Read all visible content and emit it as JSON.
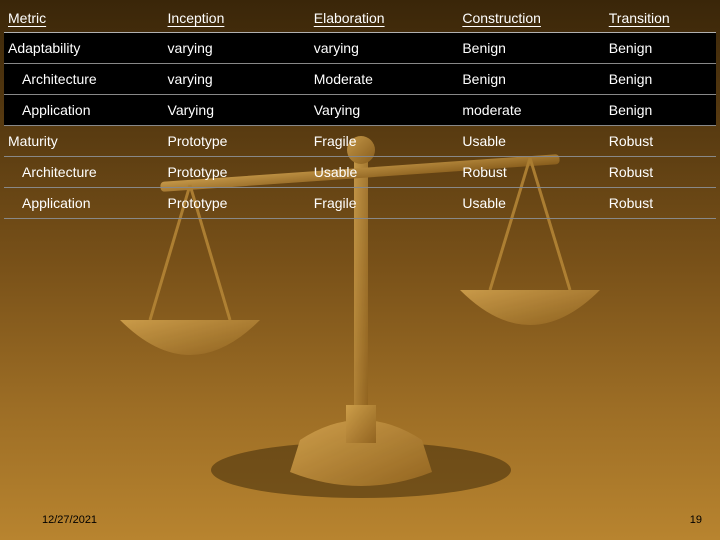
{
  "slide": {
    "background_gradient": [
      "#3a2609",
      "#5a3c11",
      "#7a5219",
      "#9c6d25",
      "#b8842f"
    ],
    "scales_color": "#c89340",
    "scales_shadow": "#3e2a0b"
  },
  "table": {
    "type": "table",
    "text_color": "#ffffff",
    "header_underline": true,
    "row_border_color": "#888888",
    "dark_row_bg": "#000000",
    "font_size": 14,
    "columns": [
      {
        "label": "Metric",
        "width": 145
      },
      {
        "label": "Inception",
        "width": 150
      },
      {
        "label": "Elaboration",
        "width": 150
      },
      {
        "label": "Construction",
        "width": 145
      },
      {
        "label": "Transition",
        "width": 110
      }
    ],
    "rows": [
      {
        "metric": "Adaptability",
        "indent": 0,
        "dark": true,
        "cells": [
          "varying",
          "varying",
          "Benign",
          "Benign"
        ]
      },
      {
        "metric": "Architecture",
        "indent": 1,
        "dark": true,
        "cells": [
          "varying",
          "Moderate",
          "Benign",
          "Benign"
        ]
      },
      {
        "metric": "Application",
        "indent": 1,
        "dark": true,
        "cells": [
          "Varying",
          "Varying",
          "moderate",
          "Benign"
        ]
      },
      {
        "metric": "Maturity",
        "indent": 0,
        "dark": false,
        "cells": [
          "Prototype",
          "Fragile",
          "Usable",
          "Robust"
        ]
      },
      {
        "metric": "Architecture",
        "indent": 1,
        "dark": false,
        "cells": [
          "Prototype",
          "Usable",
          "Robust",
          "Robust"
        ]
      },
      {
        "metric": "Application",
        "indent": 1,
        "dark": false,
        "cells": [
          "Prototype",
          "Fragile",
          "Usable",
          "Robust"
        ]
      }
    ]
  },
  "footer": {
    "date": "12/27/2021",
    "page": "19"
  }
}
